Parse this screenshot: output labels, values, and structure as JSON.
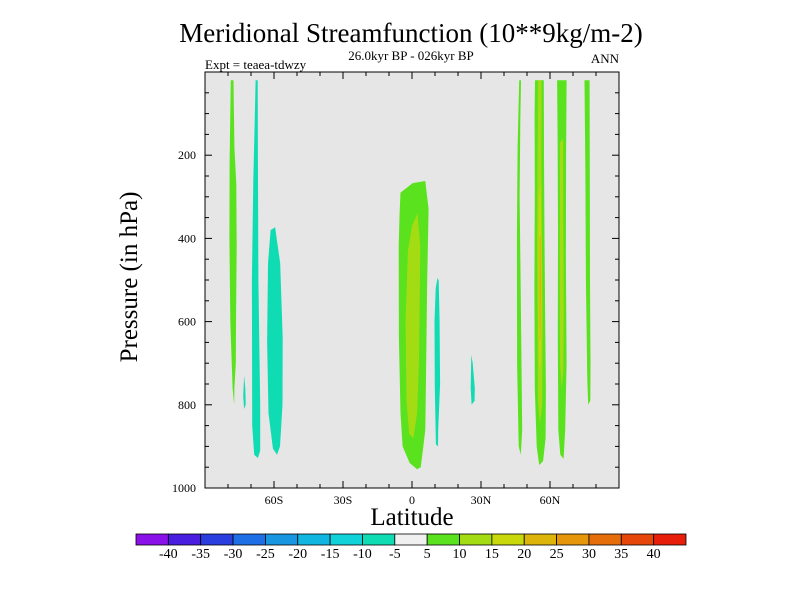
{
  "chart_data": {
    "type": "contour",
    "title": "Meridional Streamfunction (10**9kg/m-2)",
    "subtitle": "26.0kyr BP - 026kyr BP",
    "left_label": "Expt = teaea-tdwzy",
    "right_label": "ANN",
    "xlabel": "Latitude",
    "ylabel": "Pressure (in hPa)",
    "xlim": [
      -90,
      90
    ],
    "ylim": [
      1000,
      0
    ],
    "x_ticks": [
      {
        "value": -60,
        "label": "60S"
      },
      {
        "value": -30,
        "label": "30S"
      },
      {
        "value": 0,
        "label": "0"
      },
      {
        "value": 30,
        "label": "30N"
      },
      {
        "value": 60,
        "label": "60N"
      }
    ],
    "y_ticks": [
      {
        "value": 200,
        "label": "200"
      },
      {
        "value": 400,
        "label": "400"
      },
      {
        "value": 600,
        "label": "600"
      },
      {
        "value": 800,
        "label": "800"
      },
      {
        "value": 1000,
        "label": "1000"
      }
    ],
    "background_color": "#e6e6e6",
    "colorbar": {
      "levels": [
        -40,
        -35,
        -30,
        -25,
        -20,
        -15,
        -10,
        -5,
        5,
        10,
        15,
        20,
        25,
        30,
        35,
        40
      ],
      "labels": [
        "-40",
        "-35",
        "-30",
        "-25",
        "-20",
        "-15",
        "-10",
        "-5",
        "5",
        "10",
        "15",
        "20",
        "25",
        "30",
        "35",
        "40"
      ],
      "colors": [
        "#8a12e8",
        "#4a1ee0",
        "#2a3ee0",
        "#1e6ee6",
        "#1896e0",
        "#10b6e0",
        "#10d2d8",
        "#10dcb4",
        "#f0f0f0",
        "#5ae21e",
        "#a4dc14",
        "#c8d80a",
        "#dcb40a",
        "#e6960a",
        "#e66e0a",
        "#e6460a",
        "#e61e0a"
      ]
    },
    "regions": [
      {
        "name": "sh-high-lat-cell",
        "level_band": "5 to 10",
        "color": "#5ae21e",
        "polygon": [
          [
            -78.8,
            20
          ],
          [
            -77.6,
            20
          ],
          [
            -77.2,
            180
          ],
          [
            -76.4,
            270
          ],
          [
            -76.2,
            420
          ],
          [
            -76.5,
            570
          ],
          [
            -76.6,
            700
          ],
          [
            -77.2,
            760
          ],
          [
            -77.3,
            800
          ],
          [
            -78.0,
            760
          ],
          [
            -79.0,
            600
          ],
          [
            -79.4,
            400
          ],
          [
            -79.3,
            220
          ],
          [
            -79.0,
            100
          ]
        ]
      },
      {
        "name": "sh-negative-strip",
        "level_band": "-10 to -5",
        "color": "#10dcb4",
        "polygon": [
          [
            -68.0,
            20
          ],
          [
            -67.1,
            20
          ],
          [
            -67.0,
            200
          ],
          [
            -66.8,
            500
          ],
          [
            -66.0,
            800
          ],
          [
            -66.0,
            910
          ],
          [
            -67.0,
            928
          ],
          [
            -68.6,
            920
          ],
          [
            -69.5,
            850
          ],
          [
            -69.6,
            500
          ],
          [
            -69.0,
            260
          ],
          [
            -68.4,
            120
          ]
        ]
      },
      {
        "name": "sh-negative-blob",
        "level_band": "-10 to -5",
        "color": "#10dcb4",
        "polygon": [
          [
            -61.5,
            380
          ],
          [
            -59.5,
            373
          ],
          [
            -57.3,
            460
          ],
          [
            -56.2,
            640
          ],
          [
            -56.3,
            800
          ],
          [
            -57.4,
            900
          ],
          [
            -58.7,
            920
          ],
          [
            -60.5,
            905
          ],
          [
            -62.4,
            820
          ],
          [
            -63.0,
            650
          ],
          [
            -62.6,
            460
          ]
        ]
      },
      {
        "name": "sh-small-negative",
        "level_band": "-10 to -5",
        "color": "#10dcb4",
        "polygon": [
          [
            -73.0,
            730
          ],
          [
            -72.5,
            760
          ],
          [
            -72.3,
            800
          ],
          [
            -73.0,
            810
          ],
          [
            -73.4,
            780
          ]
        ]
      },
      {
        "name": "equatorial-outer",
        "level_band": "5 to 10",
        "color": "#5ae21e",
        "polygon": [
          [
            -5.0,
            290
          ],
          [
            0.3,
            267
          ],
          [
            5.8,
            262
          ],
          [
            7.2,
            330
          ],
          [
            6.6,
            500
          ],
          [
            6.2,
            680
          ],
          [
            5.8,
            860
          ],
          [
            4.6,
            915
          ],
          [
            3.8,
            950
          ],
          [
            2.2,
            955
          ],
          [
            -1.0,
            940
          ],
          [
            -4.1,
            900
          ],
          [
            -5.0,
            820
          ],
          [
            -5.7,
            640
          ],
          [
            -5.8,
            420
          ],
          [
            -5.4,
            340
          ]
        ]
      },
      {
        "name": "equatorial-inner",
        "level_band": "10 to 15",
        "color": "#a4dc14",
        "polygon": [
          [
            -1.8,
            430
          ],
          [
            0.0,
            370
          ],
          [
            2.4,
            340
          ],
          [
            3.6,
            420
          ],
          [
            3.3,
            560
          ],
          [
            3.0,
            700
          ],
          [
            2.2,
            820
          ],
          [
            0.6,
            880
          ],
          [
            -1.2,
            870
          ],
          [
            -2.4,
            790
          ],
          [
            -2.8,
            600
          ]
        ]
      },
      {
        "name": "equatorial-negative",
        "level_band": "-10 to -5",
        "color": "#10dcb4",
        "polygon": [
          [
            11.1,
            495
          ],
          [
            11.6,
            502
          ],
          [
            12.0,
            600
          ],
          [
            12.2,
            750
          ],
          [
            11.4,
            860
          ],
          [
            11.3,
            900
          ],
          [
            10.4,
            895
          ],
          [
            9.9,
            760
          ],
          [
            9.8,
            600
          ],
          [
            10.3,
            520
          ]
        ]
      },
      {
        "name": "nh-small-negative",
        "level_band": "-10 to -5",
        "color": "#10dcb4",
        "polygon": [
          [
            25.8,
            680
          ],
          [
            26.4,
            700
          ],
          [
            27.3,
            760
          ],
          [
            27.2,
            790
          ],
          [
            25.9,
            800
          ],
          [
            25.5,
            760
          ]
        ]
      },
      {
        "name": "nh-cell-a",
        "level_band": "5 to 10",
        "color": "#5ae21e",
        "polygon": [
          [
            46.6,
            20
          ],
          [
            47.4,
            20
          ],
          [
            47.1,
            120
          ],
          [
            46.8,
            300
          ],
          [
            47.2,
            500
          ],
          [
            47.6,
            700
          ],
          [
            47.9,
            860
          ],
          [
            47.3,
            920
          ],
          [
            46.4,
            900
          ],
          [
            45.7,
            700
          ],
          [
            45.6,
            400
          ],
          [
            45.9,
            180
          ]
        ]
      },
      {
        "name": "nh-cell-b-outer",
        "level_band": "5 to 10",
        "color": "#5ae21e",
        "polygon": [
          [
            53.5,
            20
          ],
          [
            57.3,
            20
          ],
          [
            57.4,
            200
          ],
          [
            57.6,
            400
          ],
          [
            57.9,
            600
          ],
          [
            58.2,
            760
          ],
          [
            58.1,
            880
          ],
          [
            57.0,
            935
          ],
          [
            55.3,
            945
          ],
          [
            54.2,
            900
          ],
          [
            53.4,
            760
          ],
          [
            53.2,
            520
          ],
          [
            53.4,
            280
          ],
          [
            53.3,
            100
          ]
        ]
      },
      {
        "name": "nh-cell-b-mid",
        "level_band": "10 to 15",
        "color": "#a4dc14",
        "polygon": [
          [
            54.8,
            20
          ],
          [
            56.3,
            20
          ],
          [
            56.2,
            220
          ],
          [
            56.5,
            420
          ],
          [
            56.8,
            620
          ],
          [
            56.6,
            800
          ],
          [
            55.6,
            845
          ],
          [
            54.8,
            790
          ],
          [
            54.6,
            600
          ],
          [
            54.4,
            400
          ],
          [
            54.6,
            200
          ]
        ]
      },
      {
        "name": "nh-cell-b-core",
        "level_band": "15 to 20",
        "color": "#c8d80a",
        "polygon": [
          [
            55.2,
            300
          ],
          [
            55.9,
            270
          ],
          [
            56.2,
            420
          ],
          [
            56.3,
            560
          ],
          [
            56.0,
            690
          ],
          [
            55.4,
            720
          ],
          [
            55.1,
            620
          ],
          [
            55.0,
            440
          ]
        ]
      },
      {
        "name": "nh-cell-b-peak",
        "level_band": "20 to 25",
        "color": "#dcb40a",
        "polygon": [
          [
            55.5,
            400
          ],
          [
            56.0,
            390
          ],
          [
            56.1,
            520
          ],
          [
            55.9,
            640
          ],
          [
            55.5,
            650
          ],
          [
            55.4,
            520
          ]
        ]
      },
      {
        "name": "nh-cell-c-outer",
        "level_band": "5 to 10",
        "color": "#5ae21e",
        "polygon": [
          [
            63.1,
            20
          ],
          [
            67.2,
            20
          ],
          [
            67.0,
            200
          ],
          [
            66.9,
            450
          ],
          [
            67.2,
            700
          ],
          [
            66.6,
            860
          ],
          [
            65.9,
            930
          ],
          [
            64.5,
            920
          ],
          [
            63.6,
            860
          ],
          [
            63.4,
            640
          ],
          [
            63.5,
            380
          ],
          [
            63.3,
            160
          ]
        ]
      },
      {
        "name": "nh-cell-c-inner",
        "level_band": "10 to 15",
        "color": "#a4dc14",
        "polygon": [
          [
            64.3,
            170
          ],
          [
            65.7,
            160
          ],
          [
            65.8,
            360
          ],
          [
            66.0,
            560
          ],
          [
            65.8,
            720
          ],
          [
            65.0,
            760
          ],
          [
            64.4,
            700
          ],
          [
            64.2,
            500
          ],
          [
            64.3,
            300
          ]
        ]
      },
      {
        "name": "nh-cell-d",
        "level_band": "5 to 10",
        "color": "#5ae21e",
        "polygon": [
          [
            75.0,
            20
          ],
          [
            77.2,
            20
          ],
          [
            77.3,
            250
          ],
          [
            77.4,
            500
          ],
          [
            77.6,
            700
          ],
          [
            77.5,
            790
          ],
          [
            76.6,
            800
          ],
          [
            76.2,
            740
          ],
          [
            75.6,
            500
          ],
          [
            75.4,
            250
          ]
        ]
      }
    ]
  }
}
